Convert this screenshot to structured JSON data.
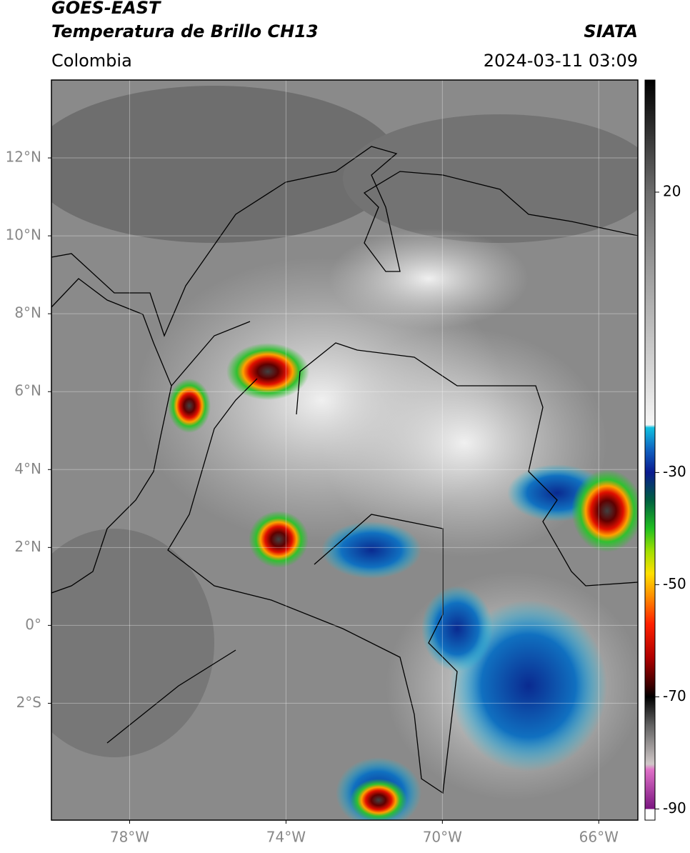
{
  "header": {
    "title": "GOES-EAST",
    "subtitle": "Temperatura de Brillo CH13",
    "source": "SIATA",
    "region": "Colombia",
    "datetime": "2024-03-11 03:09"
  },
  "map": {
    "xlim": [
      -80,
      -65
    ],
    "ylim": [
      -5,
      14
    ],
    "grid": true,
    "xticks": [
      {
        "value": -78,
        "label": "78°W"
      },
      {
        "value": -74,
        "label": "74°W"
      },
      {
        "value": -70,
        "label": "70°W"
      },
      {
        "value": -66,
        "label": "66°W"
      }
    ],
    "yticks": [
      {
        "value": 12,
        "label": "12°N"
      },
      {
        "value": 10,
        "label": "10°N"
      },
      {
        "value": 8,
        "label": "8°N"
      },
      {
        "value": 6,
        "label": "6°N"
      },
      {
        "value": 4,
        "label": "4°N"
      },
      {
        "value": 2,
        "label": "2°N"
      },
      {
        "value": 0,
        "label": "0°"
      },
      {
        "value": -2,
        "label": "2°S"
      }
    ]
  },
  "colorbar": {
    "clim": [
      -92,
      40
    ],
    "ticks": [
      20,
      -30,
      -50,
      -70,
      -90
    ],
    "colormap": [
      {
        "value": -92,
        "color": "#ffffff"
      },
      {
        "value": -90,
        "color": "#ffffff"
      },
      {
        "value": -90,
        "color": "#7a1580"
      },
      {
        "value": -83,
        "color": "#e070c8"
      },
      {
        "value": -82,
        "color": "#d0c8c8"
      },
      {
        "value": -75,
        "color": "#606060"
      },
      {
        "value": -70,
        "color": "#000000"
      },
      {
        "value": -68,
        "color": "#3a0000"
      },
      {
        "value": -63,
        "color": "#b00000"
      },
      {
        "value": -57,
        "color": "#ff2000"
      },
      {
        "value": -52,
        "color": "#ff9000"
      },
      {
        "value": -48,
        "color": "#ffe000"
      },
      {
        "value": -44,
        "color": "#a0e000"
      },
      {
        "value": -40,
        "color": "#20c020"
      },
      {
        "value": -35,
        "color": "#006040"
      },
      {
        "value": -30,
        "color": "#0a1a90"
      },
      {
        "value": -26,
        "color": "#1060c0"
      },
      {
        "value": -22,
        "color": "#10c0e0"
      },
      {
        "value": -21.5,
        "color": "#f6f6f6"
      },
      {
        "value": 0,
        "color": "#b0b0b0"
      },
      {
        "value": 20,
        "color": "#6c6c6c"
      },
      {
        "value": 40,
        "color": "#000000"
      }
    ]
  }
}
